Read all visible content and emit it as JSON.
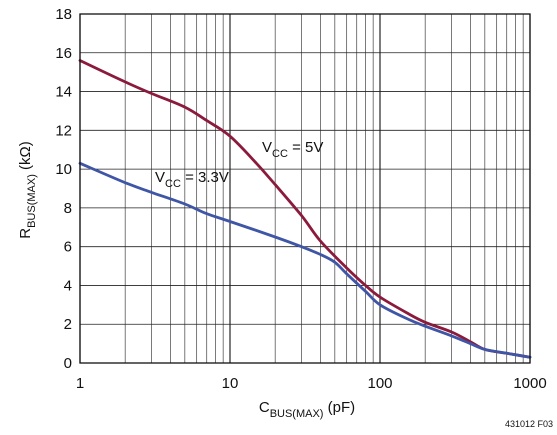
{
  "chart_data": {
    "type": "line",
    "x_scale": "log",
    "xlim": [
      1,
      1000
    ],
    "ylim": [
      0,
      18
    ],
    "grid": true,
    "x_ticks": [
      {
        "value": 1,
        "label": "1"
      },
      {
        "value": 10,
        "label": "10"
      },
      {
        "value": 100,
        "label": "100"
      },
      {
        "value": 1000,
        "label": "1000"
      }
    ],
    "y_ticks": [
      {
        "value": 0,
        "label": "0"
      },
      {
        "value": 2,
        "label": "2"
      },
      {
        "value": 4,
        "label": "4"
      },
      {
        "value": 6,
        "label": "6"
      },
      {
        "value": 8,
        "label": "8"
      },
      {
        "value": 10,
        "label": "10"
      },
      {
        "value": 12,
        "label": "12"
      },
      {
        "value": 14,
        "label": "14"
      },
      {
        "value": 16,
        "label": "16"
      },
      {
        "value": 18,
        "label": "18"
      }
    ],
    "xlabel": {
      "main": "C",
      "sub": "BUS(MAX)",
      "unit": " (pF)"
    },
    "ylabel": {
      "main": "R",
      "sub": "BUS(MAX)",
      "unit": " (kΩ)"
    },
    "figure_id": "431012 F03",
    "series": [
      {
        "name_main": "V",
        "name_sub": "CC",
        "name_rest": " = 5V",
        "color": "#8b1a3c",
        "points": [
          [
            1,
            15.6
          ],
          [
            2,
            14.5
          ],
          [
            3,
            13.9
          ],
          [
            5,
            13.2
          ],
          [
            7,
            12.5
          ],
          [
            10,
            11.7
          ],
          [
            15,
            10.3
          ],
          [
            20,
            9.2
          ],
          [
            30,
            7.6
          ],
          [
            40,
            6.3
          ],
          [
            60,
            4.9
          ],
          [
            80,
            4.0
          ],
          [
            100,
            3.4
          ],
          [
            150,
            2.6
          ],
          [
            200,
            2.1
          ],
          [
            300,
            1.6
          ],
          [
            400,
            1.1
          ],
          [
            500,
            0.7
          ],
          [
            700,
            0.5
          ],
          [
            1000,
            0.3
          ]
        ]
      },
      {
        "name_main": "V",
        "name_sub": "CC",
        "name_rest": " = 3.3V",
        "color": "#3f55a6",
        "points": [
          [
            1,
            10.3
          ],
          [
            2,
            9.3
          ],
          [
            3,
            8.8
          ],
          [
            5,
            8.2
          ],
          [
            7,
            7.7
          ],
          [
            10,
            7.3
          ],
          [
            20,
            6.5
          ],
          [
            30,
            6.0
          ],
          [
            40,
            5.6
          ],
          [
            50,
            5.2
          ],
          [
            60,
            4.6
          ],
          [
            80,
            3.7
          ],
          [
            100,
            3.0
          ],
          [
            150,
            2.3
          ],
          [
            200,
            1.9
          ],
          [
            300,
            1.4
          ],
          [
            400,
            1.0
          ],
          [
            500,
            0.7
          ],
          [
            700,
            0.5
          ],
          [
            1000,
            0.3
          ]
        ]
      }
    ]
  }
}
